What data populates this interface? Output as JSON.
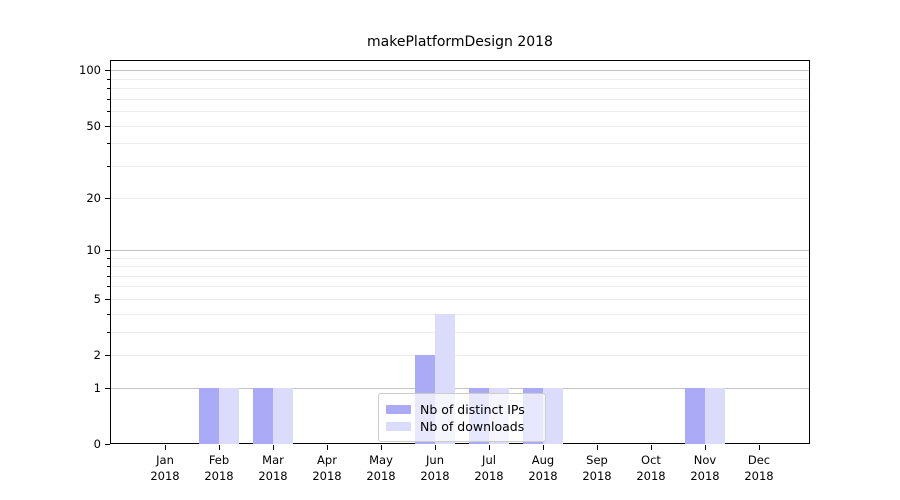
{
  "title": "makePlatformDesign 2018",
  "chart_data": {
    "type": "bar",
    "title": "makePlatformDesign 2018",
    "y_scale": "log10(1+v)",
    "categories": [
      {
        "month": "Jan",
        "year": "2018"
      },
      {
        "month": "Feb",
        "year": "2018"
      },
      {
        "month": "Mar",
        "year": "2018"
      },
      {
        "month": "Apr",
        "year": "2018"
      },
      {
        "month": "May",
        "year": "2018"
      },
      {
        "month": "Jun",
        "year": "2018"
      },
      {
        "month": "Jul",
        "year": "2018"
      },
      {
        "month": "Aug",
        "year": "2018"
      },
      {
        "month": "Sep",
        "year": "2018"
      },
      {
        "month": "Oct",
        "year": "2018"
      },
      {
        "month": "Nov",
        "year": "2018"
      },
      {
        "month": "Dec",
        "year": "2018"
      }
    ],
    "series": [
      {
        "name": "Nb of distinct IPs",
        "color": "#aaaaf7",
        "values": [
          0,
          1,
          1,
          0,
          0,
          2,
          1,
          1,
          0,
          0,
          1,
          0
        ]
      },
      {
        "name": "Nb of downloads",
        "color": "#dbdbfb",
        "values": [
          0,
          1,
          1,
          0,
          0,
          4,
          1,
          1,
          0,
          0,
          1,
          0
        ]
      }
    ],
    "y_ticks": [
      0,
      1,
      2,
      5,
      10,
      20,
      50,
      100
    ],
    "y_decade_gridlines": [
      1,
      10,
      100
    ],
    "y_minor_gridlines": [
      2,
      3,
      4,
      5,
      6,
      7,
      8,
      9,
      20,
      30,
      40,
      50,
      60,
      70,
      80,
      90
    ],
    "ylim": [
      0,
      114
    ],
    "grid": "on",
    "legend_position": "lower center"
  },
  "legend": {
    "items": [
      {
        "label": "Nb of distinct IPs"
      },
      {
        "label": "Nb of downloads"
      }
    ]
  }
}
